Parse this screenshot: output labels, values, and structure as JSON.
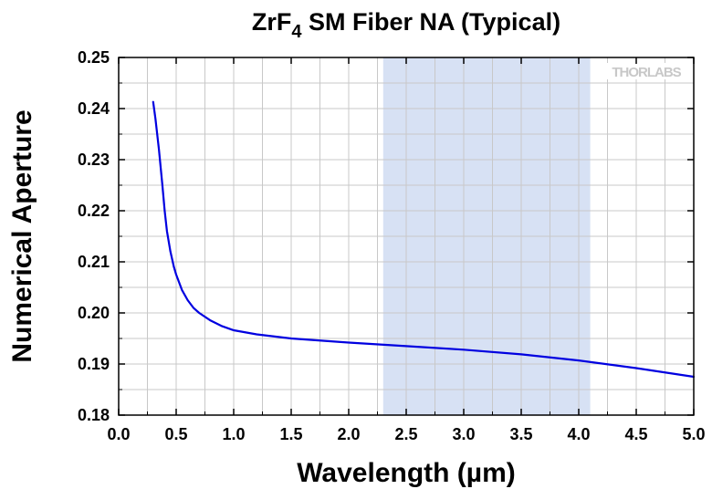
{
  "chart_data": {
    "type": "line",
    "title": "ZrF",
    "title_subscript": "4",
    "title_suffix": " SM Fiber NA (Typical)",
    "xlabel": "Wavelength (µm)",
    "ylabel": "Numerical Aperture",
    "xlim": [
      0.0,
      5.0
    ],
    "ylim": [
      0.18,
      0.25
    ],
    "x_ticks": [
      0.0,
      0.5,
      1.0,
      1.5,
      2.0,
      2.5,
      3.0,
      3.5,
      4.0,
      4.5,
      5.0
    ],
    "x_tick_labels": [
      "0.0",
      "0.5",
      "1.0",
      "1.5",
      "2.0",
      "2.5",
      "3.0",
      "3.5",
      "4.0",
      "4.5",
      "5.0"
    ],
    "y_ticks": [
      0.18,
      0.19,
      0.2,
      0.21,
      0.22,
      0.23,
      0.24,
      0.25
    ],
    "y_tick_labels": [
      "0.18",
      "0.19",
      "0.20",
      "0.21",
      "0.22",
      "0.23",
      "0.24",
      "0.25"
    ],
    "grid": true,
    "highlight_band": {
      "x_start": 2.3,
      "x_end": 4.1,
      "color": "#d7e1f4"
    },
    "series": [
      {
        "color": "#0000e0",
        "x": [
          0.3,
          0.32,
          0.35,
          0.38,
          0.4,
          0.42,
          0.45,
          0.48,
          0.5,
          0.55,
          0.6,
          0.65,
          0.7,
          0.8,
          0.9,
          1.0,
          1.2,
          1.5,
          2.0,
          2.5,
          3.0,
          3.5,
          4.0,
          4.5,
          5.0
        ],
        "y": [
          0.2413,
          0.238,
          0.232,
          0.225,
          0.22,
          0.216,
          0.212,
          0.209,
          0.2075,
          0.2045,
          0.2025,
          0.201,
          0.2,
          0.1985,
          0.1974,
          0.1966,
          0.1958,
          0.195,
          0.1942,
          0.1935,
          0.1928,
          0.1919,
          0.1907,
          0.1892,
          0.1875
        ]
      }
    ],
    "logo": "THORLABS"
  }
}
